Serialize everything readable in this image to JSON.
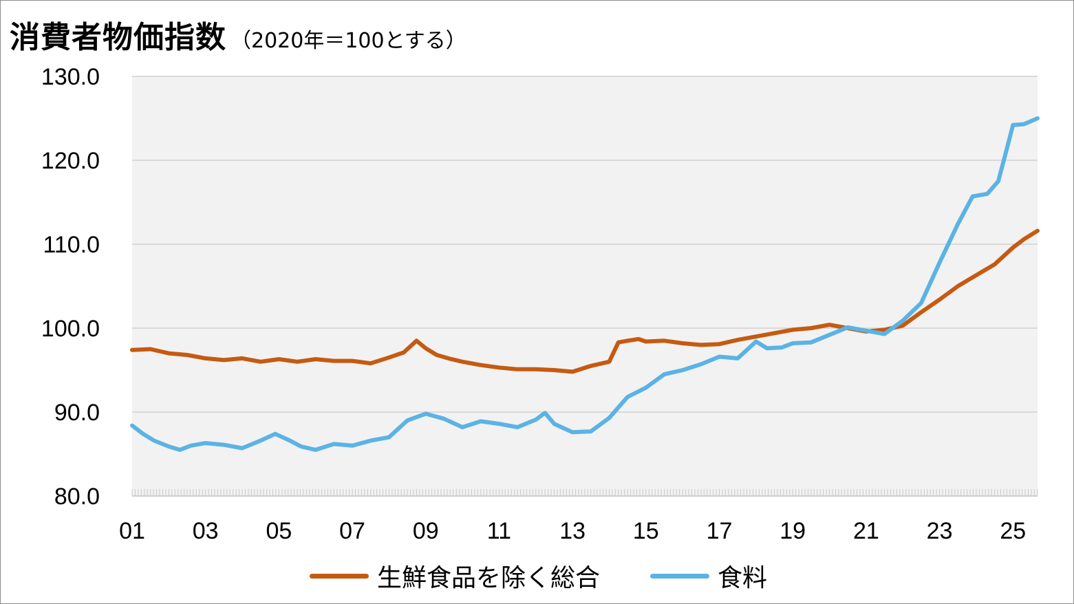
{
  "title": "消費者物価指数",
  "subtitle": "（2020年＝100とする）",
  "chart_data": {
    "type": "line",
    "title": "消費者物価指数",
    "subtitle": "（2020年＝100とする）",
    "xlabel": "",
    "ylabel": "",
    "ylim": [
      80,
      130
    ],
    "xlim": [
      2001.0,
      2025.67
    ],
    "yticks": [
      "80.0",
      "90.0",
      "100.0",
      "110.0",
      "120.0",
      "130.0"
    ],
    "xticks": [
      "01",
      "03",
      "05",
      "07",
      "09",
      "11",
      "13",
      "15",
      "17",
      "19",
      "21",
      "23",
      "25"
    ],
    "grid": true,
    "legend_position": "bottom",
    "series": [
      {
        "name": "生鮮食品を除く総合",
        "color": "#c55a11",
        "points": [
          [
            2001.0,
            97.4
          ],
          [
            2001.5,
            97.5
          ],
          [
            2002.0,
            97.0
          ],
          [
            2002.5,
            96.8
          ],
          [
            2003.0,
            96.4
          ],
          [
            2003.5,
            96.2
          ],
          [
            2004.0,
            96.4
          ],
          [
            2004.5,
            96.0
          ],
          [
            2005.0,
            96.3
          ],
          [
            2005.5,
            96.0
          ],
          [
            2006.0,
            96.3
          ],
          [
            2006.5,
            96.1
          ],
          [
            2007.0,
            96.1
          ],
          [
            2007.5,
            95.8
          ],
          [
            2008.0,
            96.5
          ],
          [
            2008.4,
            97.1
          ],
          [
            2008.75,
            98.5
          ],
          [
            2009.0,
            97.6
          ],
          [
            2009.3,
            96.8
          ],
          [
            2009.7,
            96.3
          ],
          [
            2010.0,
            96.0
          ],
          [
            2010.5,
            95.6
          ],
          [
            2011.0,
            95.3
          ],
          [
            2011.5,
            95.1
          ],
          [
            2012.0,
            95.1
          ],
          [
            2012.5,
            95.0
          ],
          [
            2013.0,
            94.8
          ],
          [
            2013.5,
            95.5
          ],
          [
            2014.0,
            96.0
          ],
          [
            2014.25,
            98.3
          ],
          [
            2014.5,
            98.5
          ],
          [
            2014.8,
            98.7
          ],
          [
            2015.0,
            98.4
          ],
          [
            2015.5,
            98.5
          ],
          [
            2016.0,
            98.2
          ],
          [
            2016.5,
            98.0
          ],
          [
            2017.0,
            98.1
          ],
          [
            2017.5,
            98.6
          ],
          [
            2018.0,
            99.0
          ],
          [
            2018.5,
            99.4
          ],
          [
            2019.0,
            99.8
          ],
          [
            2019.5,
            100.0
          ],
          [
            2020.0,
            100.4
          ],
          [
            2020.5,
            100.0
          ],
          [
            2021.0,
            99.6
          ],
          [
            2021.5,
            99.8
          ],
          [
            2022.0,
            100.3
          ],
          [
            2022.5,
            101.9
          ],
          [
            2023.0,
            103.4
          ],
          [
            2023.5,
            105.0
          ],
          [
            2024.0,
            106.3
          ],
          [
            2024.5,
            107.6
          ],
          [
            2025.0,
            109.6
          ],
          [
            2025.3,
            110.6
          ],
          [
            2025.67,
            111.6
          ]
        ]
      },
      {
        "name": "食料",
        "color": "#5bb3e4",
        "points": [
          [
            2001.0,
            88.4
          ],
          [
            2001.3,
            87.4
          ],
          [
            2001.6,
            86.6
          ],
          [
            2002.0,
            85.9
          ],
          [
            2002.3,
            85.5
          ],
          [
            2002.6,
            86.0
          ],
          [
            2003.0,
            86.3
          ],
          [
            2003.5,
            86.1
          ],
          [
            2004.0,
            85.7
          ],
          [
            2004.5,
            86.6
          ],
          [
            2004.9,
            87.4
          ],
          [
            2005.3,
            86.6
          ],
          [
            2005.6,
            85.9
          ],
          [
            2006.0,
            85.5
          ],
          [
            2006.5,
            86.2
          ],
          [
            2007.0,
            86.0
          ],
          [
            2007.5,
            86.6
          ],
          [
            2008.0,
            87.0
          ],
          [
            2008.5,
            89.0
          ],
          [
            2009.0,
            89.8
          ],
          [
            2009.5,
            89.2
          ],
          [
            2010.0,
            88.2
          ],
          [
            2010.5,
            88.9
          ],
          [
            2011.0,
            88.6
          ],
          [
            2011.5,
            88.2
          ],
          [
            2012.0,
            89.1
          ],
          [
            2012.25,
            89.9
          ],
          [
            2012.5,
            88.6
          ],
          [
            2013.0,
            87.6
          ],
          [
            2013.5,
            87.7
          ],
          [
            2014.0,
            89.3
          ],
          [
            2014.5,
            91.8
          ],
          [
            2015.0,
            92.9
          ],
          [
            2015.5,
            94.5
          ],
          [
            2016.0,
            95.0
          ],
          [
            2016.5,
            95.7
          ],
          [
            2017.0,
            96.6
          ],
          [
            2017.5,
            96.4
          ],
          [
            2018.0,
            98.4
          ],
          [
            2018.3,
            97.6
          ],
          [
            2018.7,
            97.7
          ],
          [
            2019.0,
            98.2
          ],
          [
            2019.5,
            98.3
          ],
          [
            2020.0,
            99.2
          ],
          [
            2020.5,
            100.1
          ],
          [
            2021.0,
            99.7
          ],
          [
            2021.5,
            99.3
          ],
          [
            2022.0,
            100.9
          ],
          [
            2022.5,
            103.0
          ],
          [
            2023.0,
            107.8
          ],
          [
            2023.5,
            112.4
          ],
          [
            2023.9,
            115.7
          ],
          [
            2024.3,
            116.0
          ],
          [
            2024.6,
            117.5
          ],
          [
            2024.8,
            120.8
          ],
          [
            2025.0,
            124.2
          ],
          [
            2025.3,
            124.3
          ],
          [
            2025.67,
            125.0
          ]
        ]
      }
    ]
  }
}
